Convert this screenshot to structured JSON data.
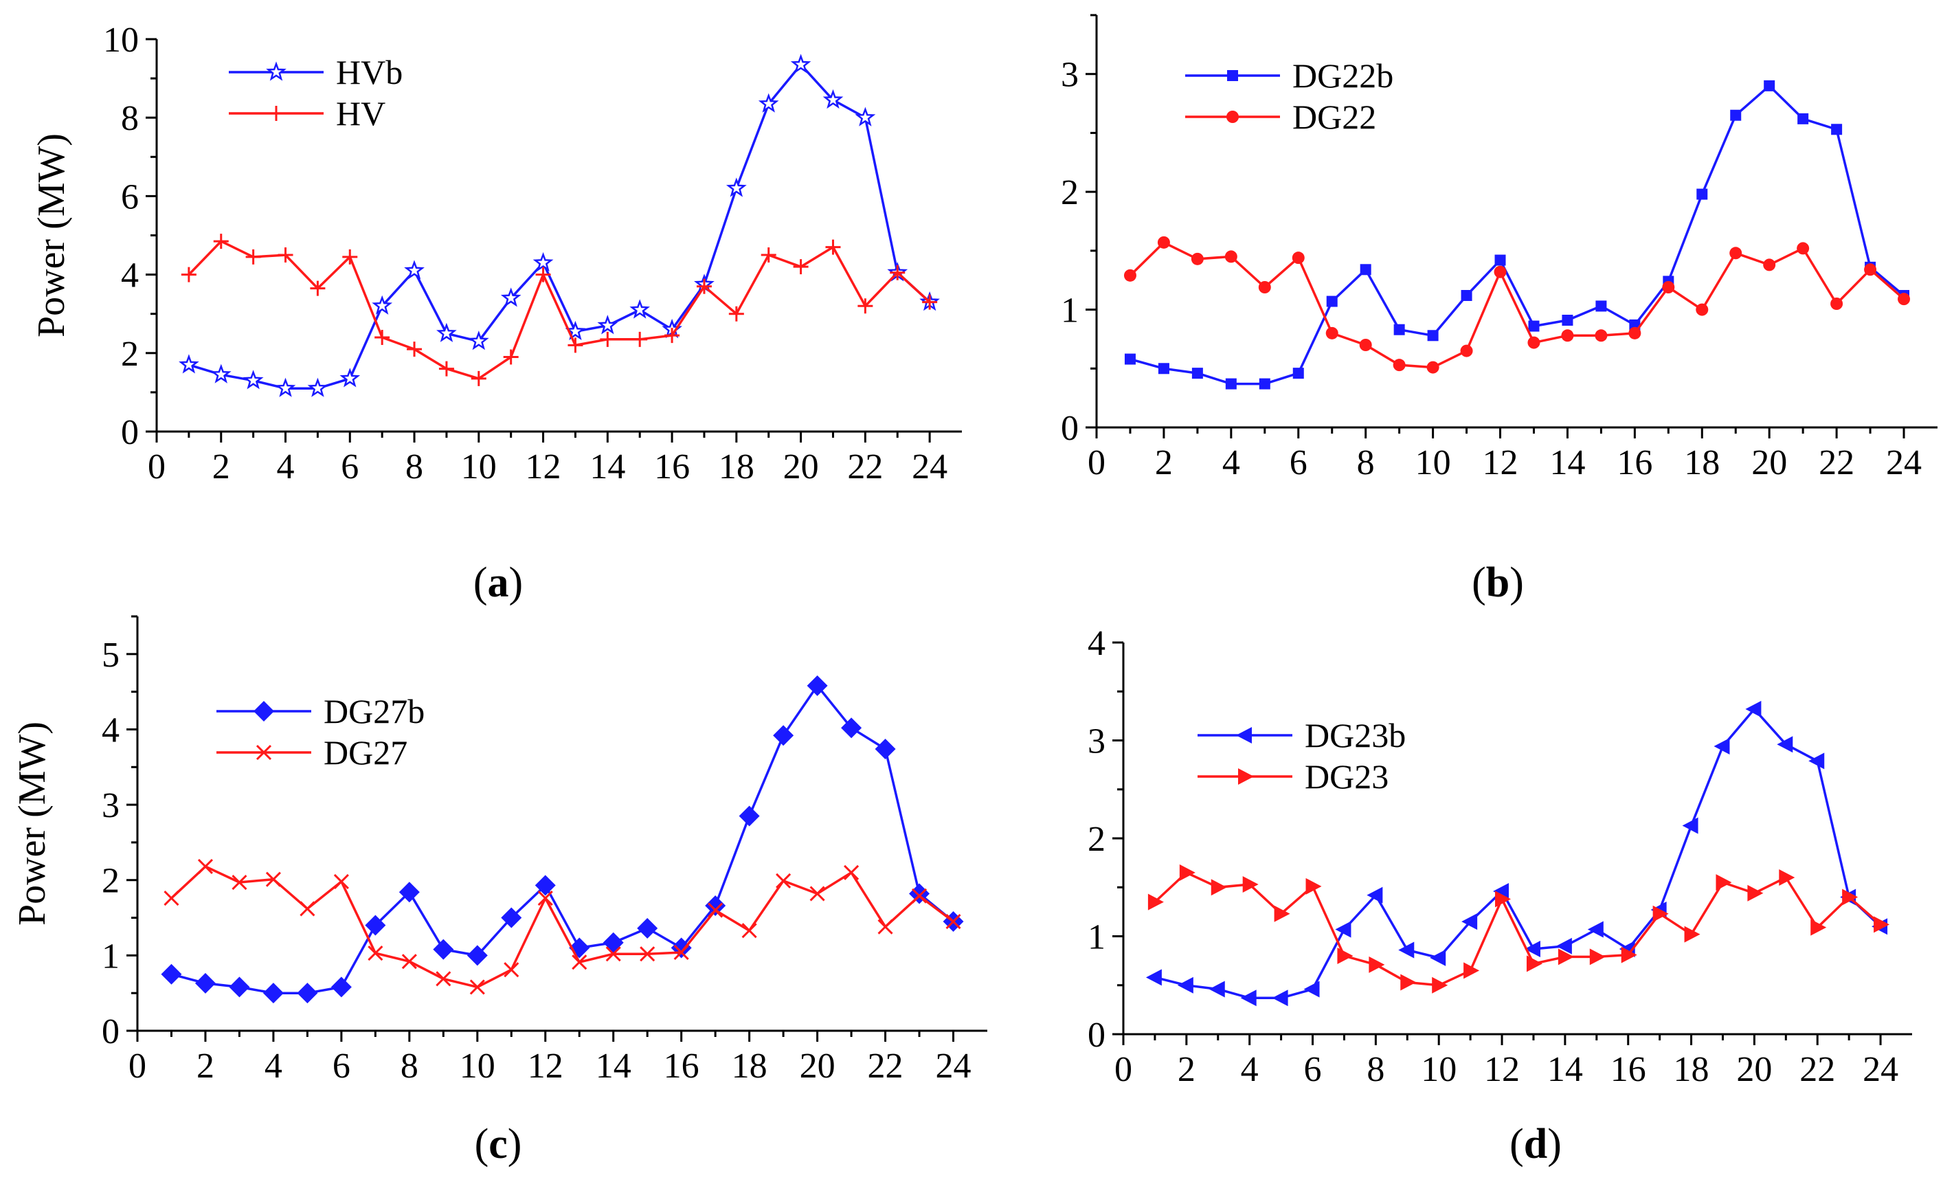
{
  "chart_data": [
    {
      "type": "line",
      "panel_label": "a",
      "ylabel": "Power (MW)",
      "xlabel": "",
      "xlim": [
        0,
        25
      ],
      "ylim": [
        0,
        10
      ],
      "xticks": [
        0,
        2,
        4,
        6,
        8,
        10,
        12,
        14,
        16,
        18,
        20,
        22,
        24
      ],
      "yticks": [
        0,
        2,
        4,
        6,
        8,
        10
      ],
      "legend_position": "top-left",
      "grid": false,
      "x": [
        1,
        2,
        3,
        4,
        5,
        6,
        7,
        8,
        9,
        10,
        11,
        12,
        13,
        14,
        15,
        16,
        17,
        18,
        19,
        20,
        21,
        22,
        23,
        24
      ],
      "series": [
        {
          "name": "HVb",
          "color": "#1a1aff",
          "marker": "star",
          "values": [
            1.7,
            1.45,
            1.3,
            1.1,
            1.1,
            1.35,
            3.2,
            4.1,
            2.5,
            2.3,
            3.4,
            4.3,
            2.55,
            2.7,
            3.1,
            2.6,
            3.75,
            6.2,
            8.35,
            9.35,
            8.45,
            8.0,
            4.05,
            3.3
          ]
        },
        {
          "name": "HV",
          "color": "#ff1a1a",
          "marker": "plus",
          "values": [
            4.0,
            4.85,
            4.45,
            4.5,
            3.65,
            4.45,
            2.4,
            2.1,
            1.6,
            1.35,
            1.9,
            4.0,
            2.2,
            2.35,
            2.35,
            2.45,
            3.7,
            3.0,
            4.5,
            4.2,
            4.7,
            3.2,
            4.05,
            3.3
          ]
        }
      ]
    },
    {
      "type": "line",
      "panel_label": "b",
      "ylabel": "",
      "xlabel": "",
      "xlim": [
        0,
        25
      ],
      "ylim": [
        0,
        3.5
      ],
      "xticks": [
        0,
        2,
        4,
        6,
        8,
        10,
        12,
        14,
        16,
        18,
        20,
        22,
        24
      ],
      "yticks": [
        0,
        1,
        2,
        3
      ],
      "legend_position": "top-left",
      "grid": false,
      "x": [
        1,
        2,
        3,
        4,
        5,
        6,
        7,
        8,
        9,
        10,
        11,
        12,
        13,
        14,
        15,
        16,
        17,
        18,
        19,
        20,
        21,
        22,
        23,
        24
      ],
      "series": [
        {
          "name": "DG22b",
          "color": "#1a1aff",
          "marker": "square",
          "values": [
            0.58,
            0.5,
            0.46,
            0.37,
            0.37,
            0.46,
            1.07,
            1.34,
            0.83,
            0.78,
            1.12,
            1.42,
            0.86,
            0.91,
            1.03,
            0.87,
            1.24,
            1.98,
            2.65,
            2.9,
            2.62,
            2.53,
            1.36,
            1.12
          ]
        },
        {
          "name": "DG22",
          "color": "#ff1a1a",
          "marker": "circle",
          "values": [
            1.29,
            1.57,
            1.43,
            1.45,
            1.19,
            1.44,
            0.8,
            0.7,
            0.53,
            0.51,
            0.65,
            1.32,
            0.72,
            0.78,
            0.78,
            0.8,
            1.19,
            1.0,
            1.48,
            1.38,
            1.52,
            1.05,
            1.34,
            1.09
          ]
        }
      ]
    },
    {
      "type": "line",
      "panel_label": "c",
      "ylabel": "Power (MW)",
      "xlabel": "",
      "xlim": [
        0,
        25
      ],
      "ylim": [
        0,
        5.5
      ],
      "xticks": [
        0,
        2,
        4,
        6,
        8,
        10,
        12,
        14,
        16,
        18,
        20,
        22,
        24
      ],
      "yticks": [
        0,
        1,
        2,
        3,
        4,
        5
      ],
      "legend_position": "top-left",
      "grid": false,
      "x": [
        1,
        2,
        3,
        4,
        5,
        6,
        7,
        8,
        9,
        10,
        11,
        12,
        13,
        14,
        15,
        16,
        17,
        18,
        19,
        20,
        21,
        22,
        23,
        24
      ],
      "series": [
        {
          "name": "DG27b",
          "color": "#1a1aff",
          "marker": "diamond",
          "values": [
            0.75,
            0.63,
            0.58,
            0.5,
            0.5,
            0.58,
            1.4,
            1.84,
            1.08,
            1.0,
            1.5,
            1.93,
            1.1,
            1.17,
            1.36,
            1.1,
            1.66,
            2.85,
            3.92,
            4.58,
            4.02,
            3.74,
            1.82,
            1.45
          ]
        },
        {
          "name": "DG27",
          "color": "#ff1a1a",
          "marker": "x",
          "values": [
            1.76,
            2.18,
            1.97,
            2.01,
            1.62,
            1.98,
            1.03,
            0.92,
            0.69,
            0.58,
            0.81,
            1.76,
            0.91,
            1.02,
            1.02,
            1.04,
            1.6,
            1.33,
            1.99,
            1.82,
            2.1,
            1.38,
            1.79,
            1.45
          ]
        }
      ]
    },
    {
      "type": "line",
      "panel_label": "d",
      "ylabel": "",
      "xlabel": "",
      "xlim": [
        0,
        25
      ],
      "ylim": [
        0,
        4
      ],
      "xticks": [
        0,
        2,
        4,
        6,
        8,
        10,
        12,
        14,
        16,
        18,
        20,
        22,
        24
      ],
      "yticks": [
        0,
        1,
        2,
        3,
        4
      ],
      "legend_position": "top-left",
      "grid": false,
      "x": [
        1,
        2,
        3,
        4,
        5,
        6,
        7,
        8,
        9,
        10,
        11,
        12,
        13,
        14,
        15,
        16,
        17,
        18,
        19,
        20,
        21,
        22,
        23,
        24
      ],
      "series": [
        {
          "name": "DG23b",
          "color": "#1a1aff",
          "marker": "triangle-left",
          "values": [
            0.58,
            0.5,
            0.46,
            0.37,
            0.37,
            0.46,
            1.07,
            1.42,
            0.86,
            0.78,
            1.15,
            1.46,
            0.87,
            0.9,
            1.07,
            0.87,
            1.27,
            2.13,
            2.94,
            3.32,
            2.96,
            2.79,
            1.4,
            1.1
          ]
        },
        {
          "name": "DG23",
          "color": "#ff1a1a",
          "marker": "triangle-right",
          "values": [
            1.35,
            1.65,
            1.5,
            1.53,
            1.23,
            1.51,
            0.8,
            0.71,
            0.53,
            0.5,
            0.65,
            1.38,
            0.72,
            0.79,
            0.79,
            0.81,
            1.23,
            1.02,
            1.55,
            1.44,
            1.6,
            1.09,
            1.4,
            1.12
          ]
        }
      ]
    }
  ]
}
